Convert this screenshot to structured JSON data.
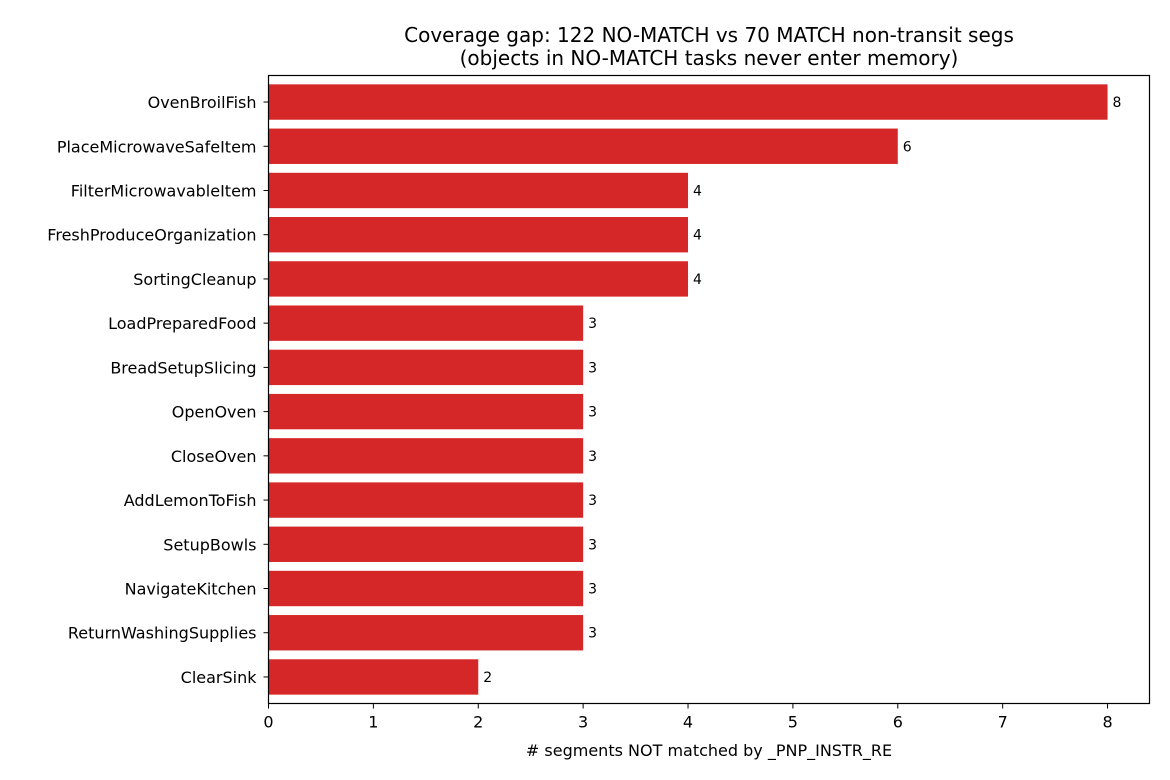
{
  "chart_data": {
    "type": "bar",
    "orientation": "horizontal",
    "title": "Coverage gap: 122 NO-MATCH vs 70 MATCH non-transit segs",
    "subtitle": "(objects in NO-MATCH tasks never enter memory)",
    "xlabel": "# segments NOT matched by _PNP_INSTR_RE",
    "ylabel": "",
    "xlim": [
      0,
      8.4
    ],
    "xticks": [
      0,
      1,
      2,
      3,
      4,
      5,
      6,
      7,
      8
    ],
    "grid": false,
    "bar_color": "#d62728",
    "categories": [
      "OvenBroilFish",
      "PlaceMicrowaveSafeItem",
      "FilterMicrowavableItem",
      "FreshProduceOrganization",
      "SortingCleanup",
      "LoadPreparedFood",
      "BreadSetupSlicing",
      "OpenOven",
      "CloseOven",
      "AddLemonToFish",
      "SetupBowls",
      "NavigateKitchen",
      "ReturnWashingSupplies",
      "ClearSink"
    ],
    "values": [
      8,
      6,
      4,
      4,
      4,
      3,
      3,
      3,
      3,
      3,
      3,
      3,
      3,
      2
    ]
  }
}
